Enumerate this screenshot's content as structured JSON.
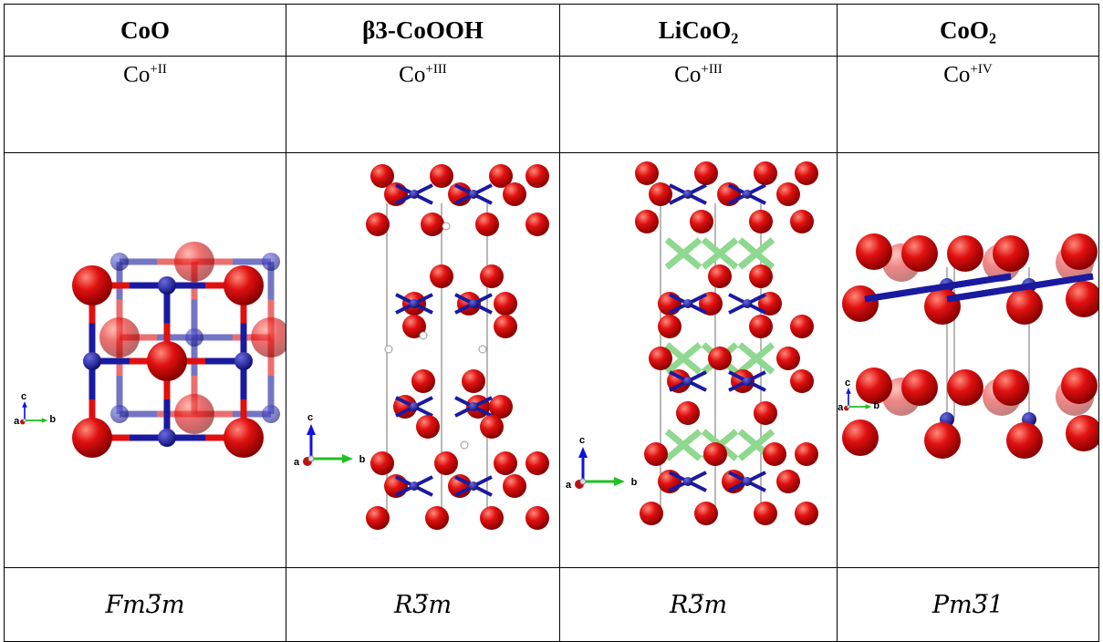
{
  "table": {
    "header": [
      "CoO",
      "β3-CoOOH",
      "LiCoO₂",
      "CoO₂"
    ],
    "oxidation": [
      {
        "base": "Co",
        "sup": "+II"
      },
      {
        "base": "Co",
        "sup": "+III"
      },
      {
        "base": "Co",
        "sup": "+III"
      },
      {
        "base": "Co",
        "sup": "+IV"
      }
    ],
    "structures": [
      {
        "axes": [
          "c",
          "a",
          "b"
        ]
      },
      {
        "axes": [
          "c",
          "a",
          "b"
        ]
      },
      {
        "axes": [
          "c",
          "a",
          "b"
        ]
      },
      {
        "axes": [
          "c",
          "a",
          "b"
        ]
      }
    ],
    "space_groups": [
      "Fm3̅m",
      "R3̅m",
      "R3̅m",
      "Pm3̅1"
    ]
  }
}
